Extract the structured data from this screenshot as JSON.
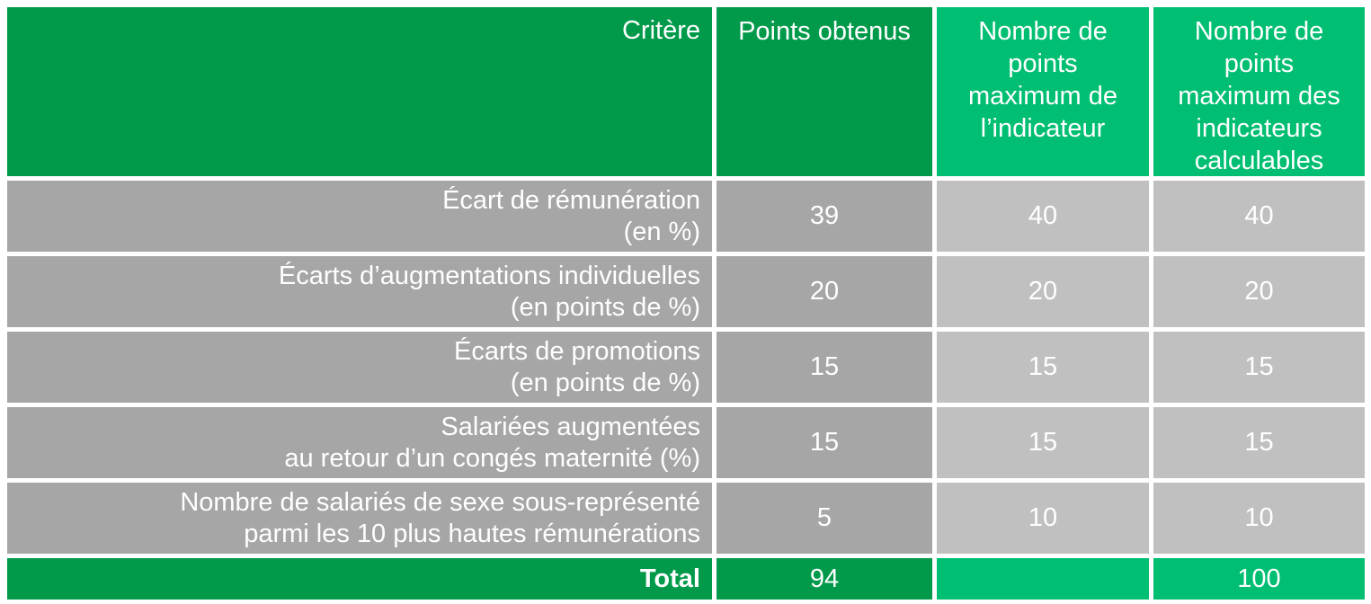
{
  "colors": {
    "dark_green": "#009A4A",
    "light_green": "#00BE72",
    "dark_gray": "#A6A6A6",
    "light_gray": "#C0C0C0",
    "text": "#FFFFFF"
  },
  "table": {
    "columns": [
      {
        "label": "Critère"
      },
      {
        "label": "Points obtenus"
      },
      {
        "label": "Nombre de\npoints\nmaximum de\nl’indicateur"
      },
      {
        "label": "Nombre de\npoints\nmaximum des\nindicateurs\ncalculables"
      }
    ],
    "rows": [
      {
        "criterion": "Écart de rémunération\n(en %)",
        "points_obtenus": "39",
        "max_indicateur": "40",
        "max_calculables": "40"
      },
      {
        "criterion": "Écarts d’augmentations individuelles\n(en points de %)",
        "points_obtenus": "20",
        "max_indicateur": "20",
        "max_calculables": "20"
      },
      {
        "criterion": "Écarts de promotions\n(en points de %)",
        "points_obtenus": "15",
        "max_indicateur": "15",
        "max_calculables": "15"
      },
      {
        "criterion": "Salariées augmentées\nau retour d’un congés maternité (%)",
        "points_obtenus": "15",
        "max_indicateur": "15",
        "max_calculables": "15"
      },
      {
        "criterion": "Nombre de salariés de sexe sous-représenté\nparmi les 10 plus hautes rémunérations",
        "points_obtenus": "5",
        "max_indicateur": "10",
        "max_calculables": "10"
      }
    ],
    "total": {
      "label": "Total",
      "points_obtenus": "94",
      "max_indicateur": "",
      "max_calculables": "100"
    }
  },
  "chart_data": {
    "type": "table",
    "columns": [
      "Critère",
      "Points obtenus",
      "Nombre de points maximum de l’indicateur",
      "Nombre de points maximum des indicateurs calculables"
    ],
    "rows": [
      [
        "Écart de rémunération (en %)",
        39,
        40,
        40
      ],
      [
        "Écarts d’augmentations individuelles (en points de %)",
        20,
        20,
        20
      ],
      [
        "Écarts de promotions (en points de %)",
        15,
        15,
        15
      ],
      [
        "Salariées augmentées au retour d’un congés maternité (%)",
        15,
        15,
        15
      ],
      [
        "Nombre de salariés de sexe sous-représenté parmi les 10 plus hautes rémunérations",
        5,
        10,
        10
      ]
    ],
    "total_row": [
      "Total",
      94,
      null,
      100
    ],
    "title": "",
    "legend_position": "none",
    "grid": false
  }
}
